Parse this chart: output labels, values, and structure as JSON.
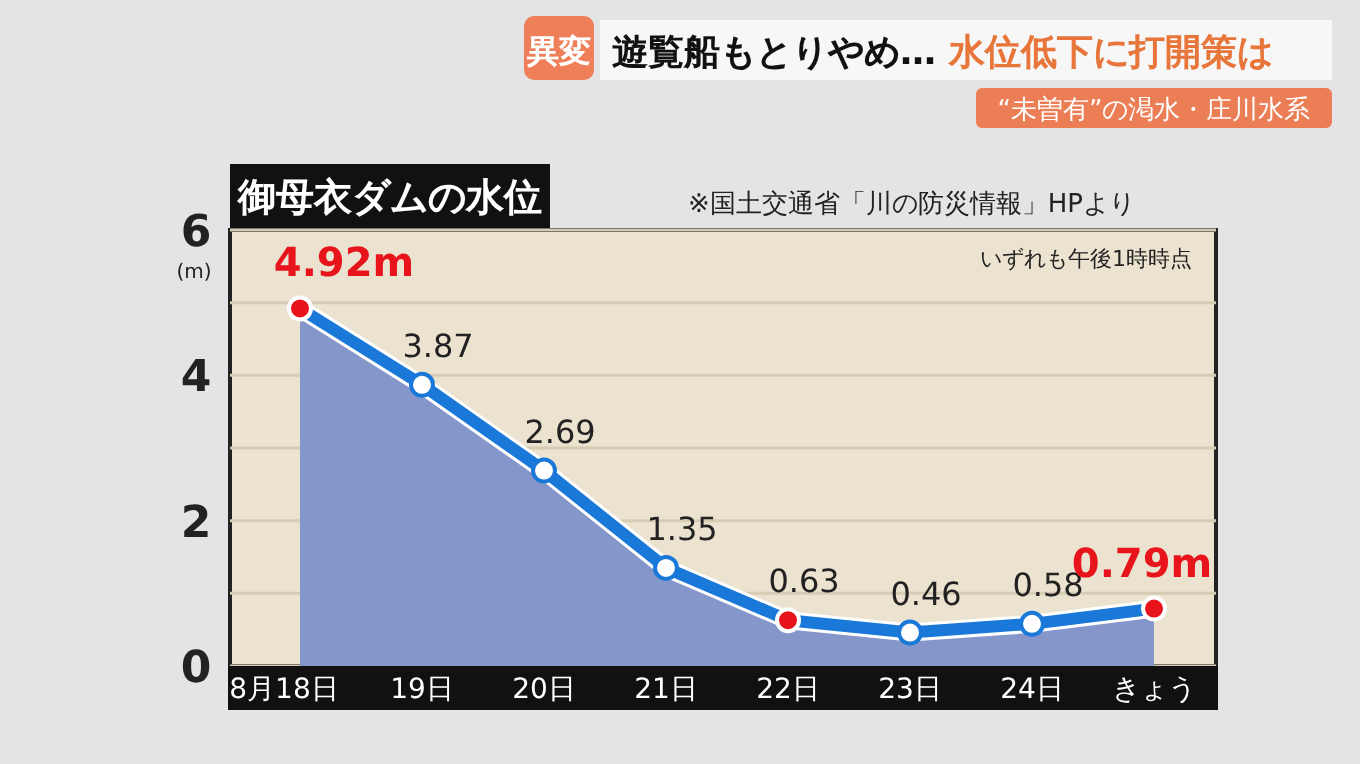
{
  "chart_data": {
    "type": "area",
    "title": "御母衣ダムの水位",
    "ylabel": "(m)",
    "annotations": [
      "異変",
      "遊覧船もとりやめ… ",
      "水位低下に打開策は",
      "“未曽有”の渇水・庄川水系",
      "※国土交通省「川の防災情報」HPより",
      "いずれも午後1時時点"
    ],
    "categories": [
      "8月18日",
      "19日",
      "20日",
      "21日",
      "22日",
      "23日",
      "24日",
      "きょう"
    ],
    "series": [
      {
        "color": "#1a78d8",
        "values": [
          4.92,
          3.87,
          2.69,
          1.35,
          0.63,
          0.46,
          0.58,
          0.79
        ],
        "colors": [
          "#e8141c",
          "#ffffff",
          "#ffffff",
          "#ffffff",
          "#e8141c",
          "#ffffff",
          "#ffffff",
          "#e8141c"
        ],
        "value_labels": [
          "4.92m",
          "3.87",
          "2.69",
          "1.35",
          "0.63",
          "0.46",
          "0.58",
          "0.79m"
        ]
      }
    ],
    "ylim": [
      0,
      6
    ],
    "yticks": [
      0,
      {
        "value": 1,
        "label": null
      },
      2,
      {
        "value": 3,
        "label": null
      },
      4,
      {
        "value": 5,
        "label": null
      },
      6
    ],
    "grid": "y",
    "marker": "circle"
  }
}
